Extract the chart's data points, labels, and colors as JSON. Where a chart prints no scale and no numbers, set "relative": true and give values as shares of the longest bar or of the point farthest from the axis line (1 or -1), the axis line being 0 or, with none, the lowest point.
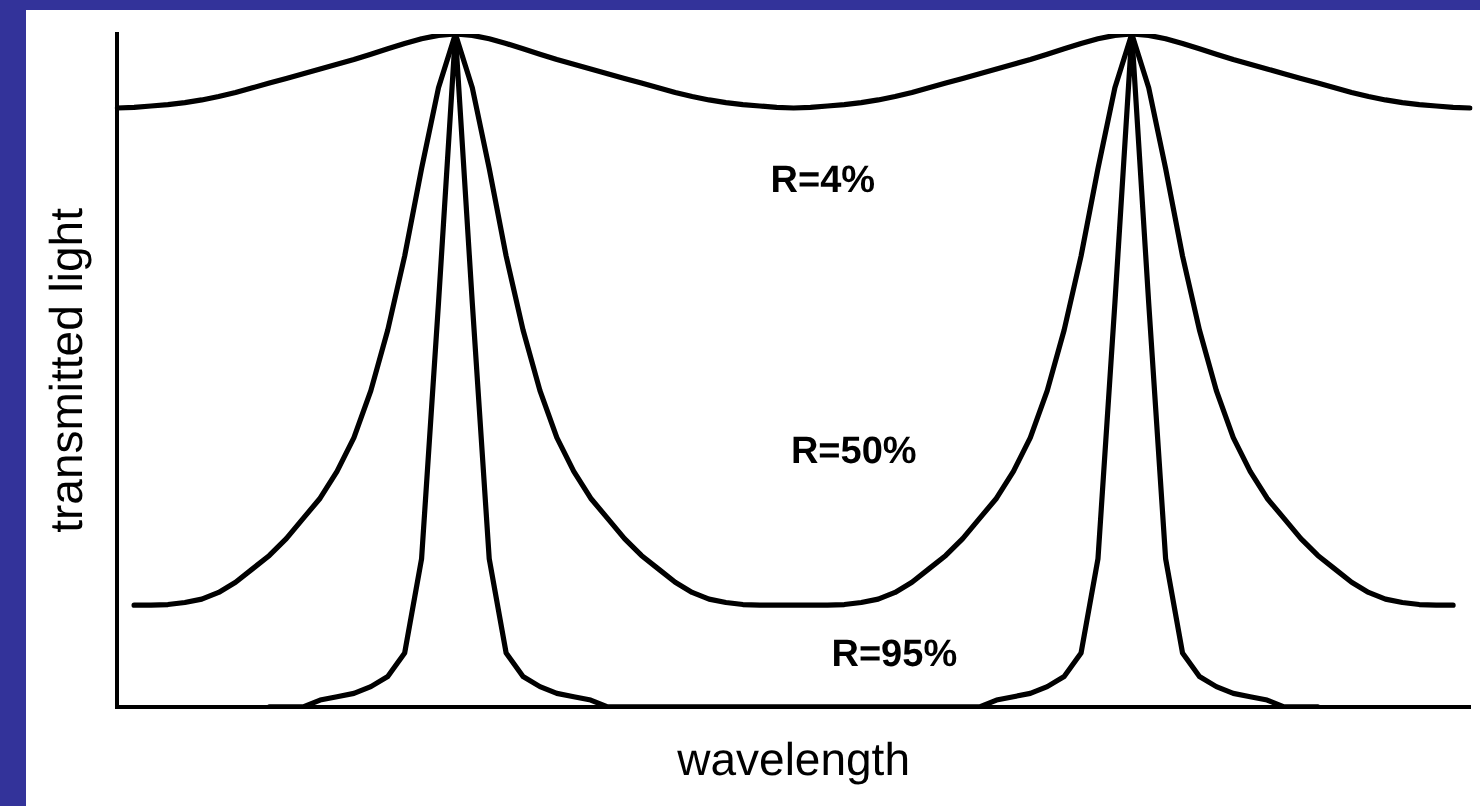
{
  "chart_data": {
    "type": "line",
    "relative": true,
    "xlabel": "wavelength",
    "ylabel": "transmitted light",
    "grid": false,
    "legend": false,
    "marker": "none",
    "line_style": "solid",
    "categories": [
      null,
      null,
      null,
      null,
      null,
      null,
      null,
      null,
      null,
      null,
      null,
      null,
      null,
      null,
      null,
      null,
      null,
      null,
      null,
      null,
      null,
      null,
      null,
      null,
      null,
      null,
      null,
      null,
      null,
      null,
      null,
      null,
      null,
      null,
      null,
      null,
      null,
      null,
      null,
      null,
      null,
      null,
      null,
      null,
      null,
      null,
      null,
      null,
      null,
      null,
      null,
      null,
      null,
      null,
      null,
      null,
      null,
      null,
      null,
      null,
      null,
      null,
      null,
      null,
      null,
      null,
      null,
      null,
      null,
      null,
      null,
      null,
      null,
      null,
      null,
      null,
      null,
      null,
      null,
      null,
      null
    ],
    "series": [
      {
        "name": "R=4%",
        "color": "#000000",
        "values": [
          0.89,
          0.891,
          0.893,
          0.895,
          0.898,
          0.902,
          0.907,
          0.913,
          0.92,
          0.927,
          0.934,
          0.941,
          0.948,
          0.955,
          0.962,
          0.97,
          0.978,
          0.986,
          0.993,
          0.998,
          1,
          0.998,
          0.993,
          0.986,
          0.978,
          0.97,
          0.962,
          0.955,
          0.948,
          0.941,
          0.934,
          0.927,
          0.92,
          0.913,
          0.907,
          0.902,
          0.898,
          0.895,
          0.893,
          0.891,
          0.89,
          0.891,
          0.893,
          0.895,
          0.898,
          0.902,
          0.907,
          0.913,
          0.92,
          0.927,
          0.934,
          0.941,
          0.948,
          0.955,
          0.962,
          0.97,
          0.978,
          0.986,
          0.993,
          0.998,
          1,
          0.998,
          0.993,
          0.986,
          0.978,
          0.97,
          0.962,
          0.955,
          0.948,
          0.941,
          0.934,
          0.927,
          0.92,
          0.913,
          0.907,
          0.902,
          0.898,
          0.895,
          0.893,
          0.891,
          0.89
        ]
      },
      {
        "name": "R=50%",
        "color": "#000000",
        "values": [
          null,
          0.151,
          0.151,
          0.152,
          0.155,
          0.16,
          0.17,
          0.185,
          0.205,
          0.225,
          0.25,
          0.28,
          0.31,
          0.35,
          0.4,
          0.47,
          0.56,
          0.67,
          0.8,
          0.92,
          1,
          0.92,
          0.8,
          0.67,
          0.56,
          0.47,
          0.4,
          0.35,
          0.31,
          0.28,
          0.25,
          0.225,
          0.205,
          0.185,
          0.17,
          0.16,
          0.155,
          0.152,
          0.151,
          0.151,
          0.151,
          0.151,
          0.151,
          0.152,
          0.155,
          0.16,
          0.17,
          0.185,
          0.205,
          0.225,
          0.25,
          0.28,
          0.31,
          0.35,
          0.4,
          0.47,
          0.56,
          0.67,
          0.8,
          0.92,
          1,
          0.92,
          0.8,
          0.67,
          0.56,
          0.47,
          0.4,
          0.35,
          0.31,
          0.28,
          0.25,
          0.225,
          0.205,
          0.185,
          0.17,
          0.16,
          0.155,
          0.152,
          0.151,
          0.151,
          null
        ]
      },
      {
        "name": "R=95%",
        "color": "#000000",
        "values": [
          null,
          null,
          null,
          null,
          null,
          null,
          null,
          null,
          null,
          0,
          0,
          0,
          0.01,
          0.015,
          0.02,
          0.03,
          0.045,
          0.08,
          0.22,
          0.6,
          1,
          0.6,
          0.22,
          0.08,
          0.045,
          0.03,
          0.02,
          0.015,
          0.01,
          0,
          0,
          0,
          0,
          0,
          0,
          0,
          0,
          0,
          0,
          0,
          0,
          0,
          0,
          0,
          0,
          0,
          0,
          0,
          0,
          0,
          0,
          0,
          0.01,
          0.015,
          0.02,
          0.03,
          0.045,
          0.08,
          0.22,
          0.6,
          1,
          0.6,
          0.22,
          0.08,
          0.045,
          0.03,
          0.02,
          0.015,
          0.01,
          0,
          0,
          0,
          null,
          null,
          null,
          null,
          null,
          null,
          null,
          null,
          null
        ]
      }
    ]
  }
}
